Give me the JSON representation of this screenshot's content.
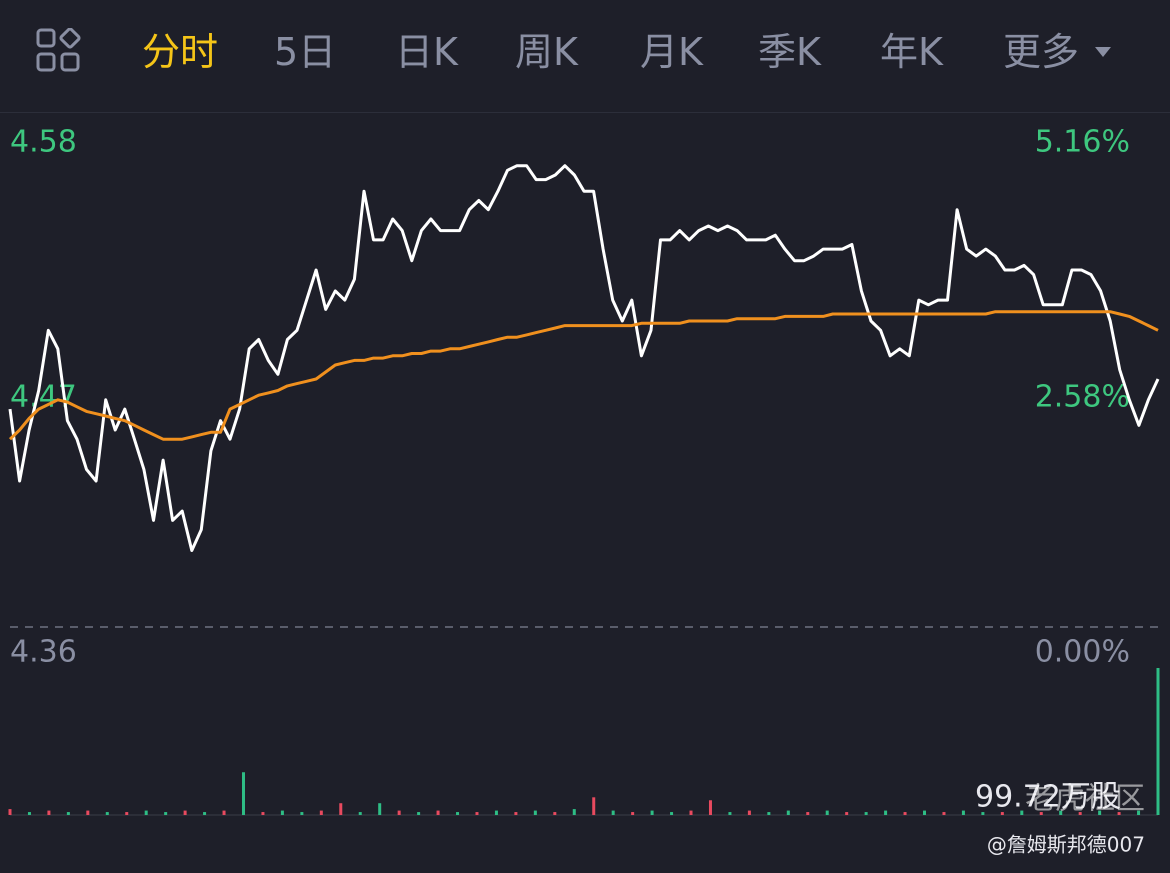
{
  "tabs": [
    "分时",
    "5日",
    "日K",
    "周K",
    "月K",
    "季K",
    "年K",
    "更多"
  ],
  "active_tab": 0,
  "chart_data": [
    {
      "type": "line",
      "series": [
        {
          "color": "#ffffff",
          "values": [
            4.454,
            4.423,
            4.445,
            4.462,
            4.488,
            4.48,
            4.449,
            4.441,
            4.428,
            4.423,
            4.458,
            4.445,
            4.454,
            4.441,
            4.428,
            4.406,
            4.432,
            4.406,
            4.41,
            4.393,
            4.402,
            4.436,
            4.449,
            4.441,
            4.454,
            4.48,
            4.484,
            4.475,
            4.469,
            4.484,
            4.488,
            4.501,
            4.514,
            4.497,
            4.505,
            4.501,
            4.51,
            4.548,
            4.527,
            4.527,
            4.536,
            4.531,
            4.518,
            4.531,
            4.536,
            4.531,
            4.531,
            4.531,
            4.54,
            4.544,
            4.54,
            4.548,
            4.557,
            4.559,
            4.559,
            4.553,
            4.553,
            4.555,
            4.559,
            4.555,
            4.548,
            4.548,
            4.523,
            4.501,
            4.492,
            4.501,
            4.477,
            4.488,
            4.527,
            4.527,
            4.531,
            4.527,
            4.531,
            4.533,
            4.531,
            4.533,
            4.531,
            4.527,
            4.527,
            4.527,
            4.529,
            4.523,
            4.518,
            4.518,
            4.52,
            4.523,
            4.523,
            4.523,
            4.525,
            4.505,
            4.492,
            4.488,
            4.477,
            4.48,
            4.477,
            4.501,
            4.499,
            4.501,
            4.501,
            4.54,
            4.523,
            4.52,
            4.523,
            4.52,
            4.514,
            4.514,
            4.516,
            4.512,
            4.499,
            4.499,
            4.499,
            4.514,
            4.514,
            4.512,
            4.505,
            4.492,
            4.471,
            4.458,
            4.447,
            4.458,
            4.467
          ]
        },
        {
          "color": "#f0901e",
          "values": [
            4.441,
            4.445,
            4.45,
            4.454,
            4.456,
            4.458,
            4.457,
            4.455,
            4.453,
            4.452,
            4.451,
            4.45,
            4.449,
            4.447,
            4.445,
            4.443,
            4.441,
            4.441,
            4.441,
            4.442,
            4.443,
            4.444,
            4.444,
            4.454,
            4.456,
            4.458,
            4.46,
            4.461,
            4.462,
            4.464,
            4.465,
            4.466,
            4.467,
            4.47,
            4.473,
            4.474,
            4.475,
            4.475,
            4.476,
            4.476,
            4.477,
            4.477,
            4.478,
            4.478,
            4.479,
            4.479,
            4.48,
            4.48,
            4.481,
            4.482,
            4.483,
            4.484,
            4.485,
            4.485,
            4.486,
            4.487,
            4.488,
            4.489,
            4.49,
            4.49,
            4.49,
            4.49,
            4.49,
            4.49,
            4.49,
            4.49,
            4.491,
            4.491,
            4.491,
            4.491,
            4.491,
            4.492,
            4.492,
            4.492,
            4.492,
            4.492,
            4.493,
            4.493,
            4.493,
            4.493,
            4.493,
            4.494,
            4.494,
            4.494,
            4.494,
            4.494,
            4.495,
            4.495,
            4.495,
            4.495,
            4.495,
            4.495,
            4.495,
            4.495,
            4.495,
            4.495,
            4.495,
            4.495,
            4.495,
            4.495,
            4.495,
            4.495,
            4.495,
            4.496,
            4.496,
            4.496,
            4.496,
            4.496,
            4.496,
            4.496,
            4.496,
            4.496,
            4.496,
            4.496,
            4.496,
            4.496,
            4.495,
            4.494,
            4.492,
            4.49,
            4.488
          ]
        }
      ],
      "ylim": [
        4.36,
        4.58
      ],
      "yticks": [
        4.36,
        4.47,
        4.58
      ],
      "y2lim": [
        0,
        5.16
      ],
      "y2ticks": [
        {
          "value": 0,
          "label": "0.00%"
        },
        {
          "value": 2.58,
          "label": "2.58%"
        },
        {
          "value": 5.16,
          "label": "5.16%"
        }
      ]
    },
    {
      "type": "bar",
      "annotation": "99.72万股",
      "ylim": [
        0,
        99.72
      ],
      "values": [
        4,
        2,
        3,
        2,
        3,
        2,
        2,
        3,
        2,
        3,
        2,
        3,
        29,
        2,
        3,
        2,
        3,
        8,
        2,
        8,
        3,
        2,
        3,
        2,
        2,
        3,
        2,
        3,
        2,
        4,
        12,
        3,
        2,
        3,
        2,
        3,
        10,
        2,
        3,
        2,
        3,
        2,
        3,
        2,
        2,
        3,
        2,
        3,
        2,
        3,
        2,
        2,
        3,
        2,
        3,
        2,
        3,
        2,
        3,
        99.72
      ],
      "colors": [
        "#e84a5f",
        "#2ebd85",
        "#e84a5f",
        "#2ebd85",
        "#e84a5f",
        "#2ebd85",
        "#e84a5f",
        "#2ebd85",
        "#2ebd85",
        "#e84a5f",
        "#2ebd85",
        "#e84a5f",
        "#2ebd85",
        "#e84a5f",
        "#2ebd85",
        "#2ebd85",
        "#e84a5f",
        "#e84a5f",
        "#2ebd85",
        "#2ebd85",
        "#e84a5f",
        "#2ebd85",
        "#e84a5f",
        "#2ebd85",
        "#e84a5f",
        "#2ebd85",
        "#e84a5f",
        "#2ebd85",
        "#e84a5f",
        "#2ebd85",
        "#e84a5f",
        "#2ebd85",
        "#e84a5f",
        "#2ebd85",
        "#2ebd85",
        "#e84a5f",
        "#e84a5f",
        "#2ebd85",
        "#e84a5f",
        "#2ebd85",
        "#2ebd85",
        "#e84a5f",
        "#2ebd85",
        "#e84a5f",
        "#2ebd85",
        "#2ebd85",
        "#e84a5f",
        "#2ebd85",
        "#e84a5f",
        "#2ebd85",
        "#2ebd85",
        "#e84a5f",
        "#2ebd85",
        "#e84a5f",
        "#2ebd85",
        "#e84a5f",
        "#2ebd85",
        "#e84a5f",
        "#2ebd85",
        "#2ebd85"
      ]
    }
  ],
  "watermark": "老虎社区",
  "credit": "@詹姆斯邦德007"
}
